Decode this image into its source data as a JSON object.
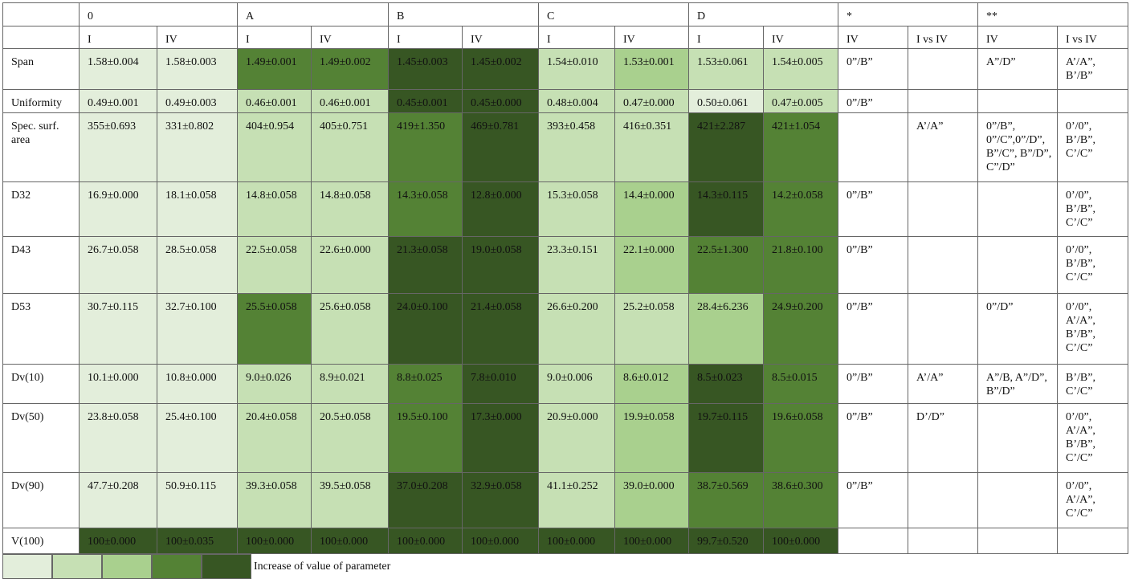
{
  "header": {
    "groups": [
      "0",
      "A",
      "B",
      "C",
      "D",
      "*",
      "**"
    ],
    "subheaders": [
      "I",
      "IV",
      "I",
      "IV",
      "I",
      "IV",
      "I",
      "IV",
      "I",
      "IV",
      "IV",
      "I vs IV",
      "IV",
      "I vs IV"
    ]
  },
  "palette": [
    "#e3eedb",
    "#c6e0b4",
    "#a9d08e",
    "#548235",
    "#375623"
  ],
  "rows": [
    {
      "label": "Span",
      "cells": [
        "1.58±0.004",
        "1.58±0.003",
        "1.49±0.001",
        "1.49±0.002",
        "1.45±0.003",
        "1.45±0.002",
        "1.54±0.010",
        "1.53±0.001",
        "1.53±0.061",
        "1.54±0.005"
      ],
      "shades": [
        0,
        0,
        3,
        3,
        4,
        4,
        1,
        2,
        1,
        1
      ],
      "notes": [
        "0”/B”",
        null,
        "A”/D”",
        "A’/A”, B’/B”"
      ]
    },
    {
      "label": "Uniformity",
      "cells": [
        "0.49±0.001",
        "0.49±0.003",
        "0.46±0.001",
        "0.46±0.001",
        "0.45±0.001",
        "0.45±0.000",
        "0.48±0.004",
        "0.47±0.000",
        "0.50±0.061",
        "0.47±0.005"
      ],
      "shades": [
        0,
        0,
        1,
        1,
        4,
        4,
        1,
        1,
        0,
        1
      ],
      "notes": [
        "0”/B”",
        null,
        null,
        null
      ]
    },
    {
      "label": "Spec. surf. area",
      "cells": [
        "355±0.693",
        "331±0.802",
        "404±0.954",
        "405±0.751",
        "419±1.350",
        "469±0.781",
        "393±0.458",
        "416±0.351",
        "421±2.287",
        "421±1.054"
      ],
      "shades": [
        0,
        0,
        1,
        1,
        3,
        4,
        1,
        1,
        4,
        3
      ],
      "notes": [
        null,
        "A’/A”",
        "0”/B”, 0”/C”,0”/D”, B”/C”, B”/D”, C”/D”",
        "0’/0”, B’/B”, C’/C”"
      ]
    },
    {
      "label": "D32",
      "cells": [
        "16.9±0.000",
        "18.1±0.058",
        "14.8±0.058",
        "14.8±0.058",
        "14.3±0.058",
        "12.8±0.000",
        "15.3±0.058",
        "14.4±0.000",
        "14.3±0.115",
        "14.2±0.058"
      ],
      "shades": [
        0,
        0,
        1,
        1,
        3,
        4,
        1,
        2,
        4,
        3
      ],
      "notes": [
        "0”/B”",
        null,
        null,
        "0’/0”, B’/B”, C’/C”"
      ]
    },
    {
      "label": "D43",
      "cells": [
        "26.7±0.058",
        "28.5±0.058",
        "22.5±0.058",
        "22.6±0.000",
        "21.3±0.058",
        "19.0±0.058",
        "23.3±0.151",
        "22.1±0.000",
        "22.5±1.300",
        "21.8±0.100"
      ],
      "shades": [
        0,
        0,
        1,
        1,
        4,
        4,
        1,
        2,
        3,
        3
      ],
      "notes": [
        "0”/B”",
        null,
        null,
        "0’/0”, B’/B”, C’/C”"
      ]
    },
    {
      "label": "D53",
      "cells": [
        "30.7±0.115",
        "32.7±0.100",
        "25.5±0.058",
        "25.6±0.058",
        "24.0±0.100",
        "21.4±0.058",
        "26.6±0.200",
        "25.2±0.058",
        "28.4±6.236",
        "24.9±0.200"
      ],
      "shades": [
        0,
        0,
        3,
        1,
        4,
        4,
        1,
        1,
        2,
        3
      ],
      "notes": [
        "0”/B”",
        null,
        "0”/D”",
        "0’/0”, A’/A”, B’/B”, C’/C”"
      ]
    },
    {
      "label": "Dv(10)",
      "cells": [
        "10.1±0.000",
        "10.8±0.000",
        "9.0±0.026",
        "8.9±0.021",
        "8.8±0.025",
        "7.8±0.010",
        "9.0±0.006",
        "8.6±0.012",
        "8.5±0.023",
        "8.5±0.015"
      ],
      "shades": [
        0,
        0,
        1,
        1,
        3,
        4,
        1,
        2,
        4,
        3
      ],
      "notes": [
        "0”/B”",
        "A’/A”",
        "A”/B, A”/D”, B”/D”",
        "B’/B”, C’/C”"
      ]
    },
    {
      "label": "Dv(50)",
      "cells": [
        "23.8±0.058",
        "25.4±0.100",
        "20.4±0.058",
        "20.5±0.058",
        "19.5±0.100",
        "17.3±0.000",
        "20.9±0.000",
        "19.9±0.058",
        "19.7±0.115",
        "19.6±0.058"
      ],
      "shades": [
        0,
        0,
        1,
        1,
        3,
        4,
        1,
        2,
        4,
        3
      ],
      "notes": [
        "0”/B”",
        "D’/D”",
        null,
        "0’/0”, A’/A”, B’/B”, C’/C”"
      ]
    },
    {
      "label": "Dv(90)",
      "cells": [
        "47.7±0.208",
        "50.9±0.115",
        "39.3±0.058",
        "39.5±0.058",
        "37.0±0.208",
        "32.9±0.058",
        "41.1±0.252",
        "39.0±0.000",
        "38.7±0.569",
        "38.6±0.300"
      ],
      "shades": [
        0,
        0,
        1,
        1,
        4,
        4,
        1,
        2,
        3,
        3
      ],
      "notes": [
        "0”/B”",
        null,
        null,
        "0’/0”, A’/A”, C’/C”"
      ]
    },
    {
      "label": "V(100)",
      "cells": [
        "100±0.000",
        "100±0.035",
        "100±0.000",
        "100±0.000",
        "100±0.000",
        "100±0.000",
        "100±0.000",
        "100±0.000",
        "99.7±0.520",
        "100±0.000"
      ],
      "shades": [
        4,
        4,
        4,
        4,
        4,
        4,
        4,
        4,
        4,
        4
      ],
      "notes": [
        null,
        null,
        null,
        null
      ]
    }
  ],
  "legend": {
    "text": "Increase of value of parameter"
  }
}
